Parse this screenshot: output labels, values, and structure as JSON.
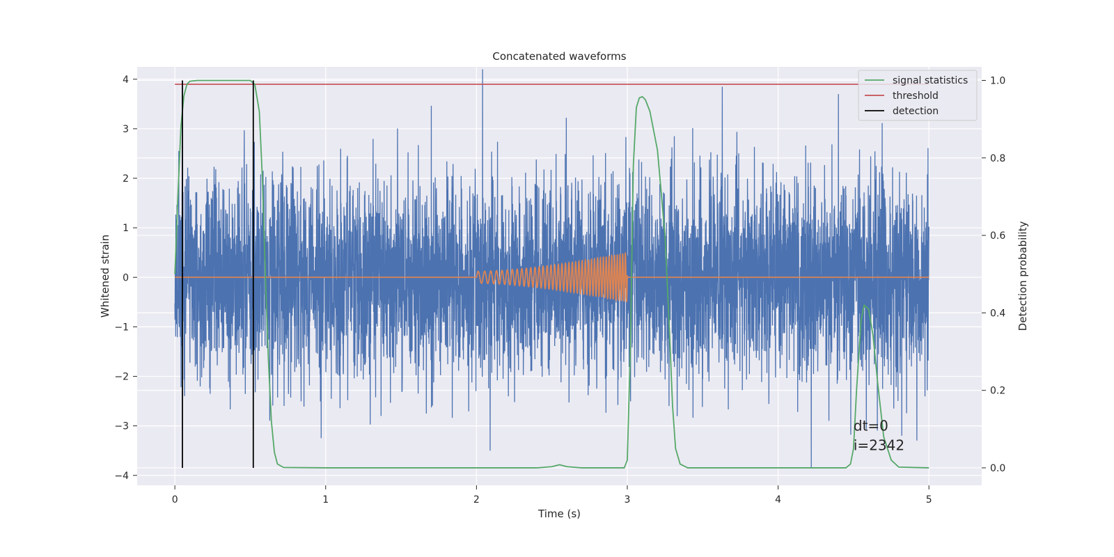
{
  "chart_data": {
    "type": "line",
    "title": "Concatenated waveforms",
    "xlabel": "Time (s)",
    "ylabel": "Whitened strain",
    "y2label": "Detection probability",
    "xlim": [
      -0.25,
      5.35
    ],
    "ylim": [
      -4.2,
      4.25
    ],
    "y2lim": [
      -0.045,
      1.035
    ],
    "x_ticks": [
      "0",
      "1",
      "2",
      "3",
      "4",
      "5"
    ],
    "x_tick_values": [
      0,
      1,
      2,
      3,
      4,
      5
    ],
    "y_ticks": [
      "−4",
      "−3",
      "−2",
      "−1",
      "0",
      "1",
      "2",
      "3",
      "4"
    ],
    "y_tick_values": [
      -4,
      -3,
      -2,
      -1,
      0,
      1,
      2,
      3,
      4
    ],
    "y2_ticks": [
      "0.0",
      "0.2",
      "0.4",
      "0.6",
      "0.8",
      "1.0"
    ],
    "y2_tick_values": [
      0,
      0.2,
      0.4,
      0.6,
      0.8,
      1.0
    ],
    "grid": true,
    "legend_position": "top-right",
    "legend": [
      {
        "label": "signal statistics",
        "color": "#55a868"
      },
      {
        "label": "threshold",
        "color": "#c44e52"
      },
      {
        "label": "detection",
        "color": "#000000"
      }
    ],
    "colors": {
      "strain": "#4c72b0",
      "injected_signal": "#dd8452",
      "background": "#eaeaf2",
      "grid": "#ffffff"
    },
    "strain_noise": {
      "x_range": [
        0,
        5
      ],
      "std": 1.0,
      "peak_values": [
        {
          "x": 0.05,
          "y": 3.85
        },
        {
          "x": 2.04,
          "y": 4.2
        },
        {
          "x": 3.63,
          "y": 3.85
        },
        {
          "x": 4.22,
          "y": -3.85
        },
        {
          "x": 2.09,
          "y": -3.5
        },
        {
          "x": 0.97,
          "y": -3.25
        },
        {
          "x": 4.82,
          "y": -3.2
        },
        {
          "x": 4.4,
          "y": 3.7
        }
      ]
    },
    "injected_signal": {
      "name": "chirp",
      "x_range": [
        2.0,
        3.0
      ],
      "amplitude_start": 0.12,
      "amplitude_end": 0.5,
      "frequency_start": 22,
      "frequency_end": 58
    },
    "signal_statistics": {
      "axis": "right",
      "points": [
        [
          0.0,
          0.5
        ],
        [
          0.02,
          0.7
        ],
        [
          0.04,
          0.88
        ],
        [
          0.06,
          0.96
        ],
        [
          0.08,
          0.99
        ],
        [
          0.1,
          0.998
        ],
        [
          0.15,
          1.0
        ],
        [
          0.5,
          1.0
        ],
        [
          0.53,
          0.99
        ],
        [
          0.56,
          0.92
        ],
        [
          0.58,
          0.75
        ],
        [
          0.6,
          0.5
        ],
        [
          0.62,
          0.28
        ],
        [
          0.64,
          0.12
        ],
        [
          0.66,
          0.04
        ],
        [
          0.68,
          0.01
        ],
        [
          0.72,
          0.001
        ],
        [
          1.0,
          0.0
        ],
        [
          2.4,
          0.0
        ],
        [
          2.5,
          0.003
        ],
        [
          2.55,
          0.008
        ],
        [
          2.6,
          0.003
        ],
        [
          2.7,
          0.0
        ],
        [
          2.98,
          0.0
        ],
        [
          3.0,
          0.02
        ],
        [
          3.02,
          0.3
        ],
        [
          3.04,
          0.78
        ],
        [
          3.06,
          0.93
        ],
        [
          3.08,
          0.955
        ],
        [
          3.1,
          0.958
        ],
        [
          3.12,
          0.95
        ],
        [
          3.15,
          0.92
        ],
        [
          3.2,
          0.82
        ],
        [
          3.25,
          0.6
        ],
        [
          3.28,
          0.35
        ],
        [
          3.3,
          0.16
        ],
        [
          3.32,
          0.05
        ],
        [
          3.35,
          0.01
        ],
        [
          3.4,
          0.0
        ],
        [
          4.45,
          0.0
        ],
        [
          4.48,
          0.01
        ],
        [
          4.5,
          0.05
        ],
        [
          4.52,
          0.2
        ],
        [
          4.55,
          0.38
        ],
        [
          4.57,
          0.42
        ],
        [
          4.6,
          0.41
        ],
        [
          4.63,
          0.34
        ],
        [
          4.66,
          0.22
        ],
        [
          4.7,
          0.08
        ],
        [
          4.75,
          0.02
        ],
        [
          4.8,
          0.002
        ],
        [
          5.0,
          0.0
        ]
      ]
    },
    "threshold": {
      "axis": "right",
      "value": 0.99,
      "x_range": [
        0,
        5
      ]
    },
    "detections": [
      {
        "x": 0.05,
        "y2_range": [
          0.0,
          1.0
        ]
      },
      {
        "x": 0.52,
        "y2_range": [
          0.0,
          1.0
        ]
      }
    ],
    "annotation": {
      "lines": [
        "dt=0",
        "i=2342"
      ],
      "x": 4.5,
      "y": -3.0
    }
  }
}
